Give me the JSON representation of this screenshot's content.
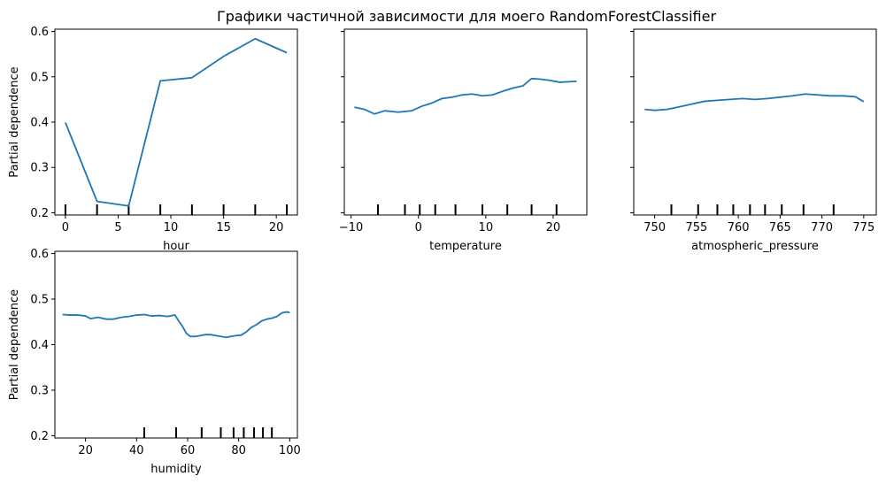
{
  "figure": {
    "title": "Графики частичной зависимости для моего RandomForestClassifier",
    "line_color": "#1f77b4",
    "axis_color": "#000000",
    "background": "#ffffff"
  },
  "chart_data": [
    {
      "type": "line",
      "xlabel": "hour",
      "ylabel": "Partial dependence",
      "show_ytick_labels": true,
      "grid": false,
      "xlim": [
        -1,
        22
      ],
      "ylim": [
        0.195,
        0.605
      ],
      "xticks": [
        0,
        5,
        10,
        15,
        20
      ],
      "xtick_labels": [
        "0",
        "5",
        "10",
        "15",
        "20"
      ],
      "yticks": [
        0.2,
        0.3,
        0.4,
        0.5,
        0.6
      ],
      "ytick_labels": [
        "0.2",
        "0.3",
        "0.4",
        "0.5",
        "0.6"
      ],
      "x": [
        0,
        3,
        6,
        9,
        12,
        15,
        18,
        21
      ],
      "y": [
        0.399,
        0.225,
        0.215,
        0.491,
        0.498,
        0.545,
        0.584,
        0.553
      ],
      "rug": [
        0,
        3,
        6,
        9,
        12,
        15,
        18,
        21
      ]
    },
    {
      "type": "line",
      "xlabel": "temperature",
      "ylabel": "",
      "show_ytick_labels": false,
      "grid": false,
      "xlim": [
        -11,
        25
      ],
      "ylim": [
        0.195,
        0.605
      ],
      "xticks": [
        -10,
        0,
        10,
        20
      ],
      "xtick_labels": [
        "−10",
        "0",
        "10",
        "20"
      ],
      "yticks": [
        0.2,
        0.3,
        0.4,
        0.5,
        0.6
      ],
      "ytick_labels": [
        "",
        "",
        "",
        "",
        ""
      ],
      "x": [
        -9.5,
        -8,
        -6.5,
        -5,
        -3,
        -1,
        0.5,
        2,
        3.5,
        5,
        6.5,
        8,
        9.5,
        11,
        12.5,
        14,
        15.5,
        16.8,
        18,
        19.5,
        21,
        23.5
      ],
      "y": [
        0.433,
        0.428,
        0.418,
        0.425,
        0.422,
        0.425,
        0.435,
        0.442,
        0.452,
        0.455,
        0.46,
        0.462,
        0.458,
        0.46,
        0.468,
        0.475,
        0.48,
        0.496,
        0.495,
        0.492,
        0.488,
        0.49
      ],
      "rug": [
        -6,
        -2,
        0.2,
        2.5,
        5.5,
        9.5,
        13.2,
        16.8,
        20.5
      ]
    },
    {
      "type": "line",
      "xlabel": "atmospheric_pressure",
      "ylabel": "",
      "show_ytick_labels": false,
      "grid": false,
      "xlim": [
        747.5,
        776.5
      ],
      "ylim": [
        0.195,
        0.605
      ],
      "xticks": [
        750,
        755,
        760,
        765,
        770,
        775
      ],
      "xtick_labels": [
        "750",
        "755",
        "760",
        "765",
        "770",
        "775"
      ],
      "yticks": [
        0.2,
        0.3,
        0.4,
        0.5,
        0.6
      ],
      "ytick_labels": [
        "",
        "",
        "",
        "",
        ""
      ],
      "x": [
        748.8,
        750,
        751.5,
        753,
        754.5,
        756,
        757.5,
        759,
        760.5,
        762,
        763.5,
        765,
        766.5,
        768,
        769.5,
        771,
        772.5,
        774,
        775
      ],
      "y": [
        0.428,
        0.426,
        0.428,
        0.434,
        0.44,
        0.446,
        0.448,
        0.45,
        0.452,
        0.45,
        0.452,
        0.455,
        0.458,
        0.462,
        0.46,
        0.458,
        0.458,
        0.456,
        0.445
      ],
      "rug": [
        752,
        755.2,
        757.5,
        759.4,
        761.4,
        763.2,
        765.2,
        767.8,
        771.4
      ]
    },
    {
      "type": "line",
      "xlabel": "humidity",
      "ylabel": "Partial dependence",
      "show_ytick_labels": true,
      "grid": false,
      "xlim": [
        8,
        103
      ],
      "ylim": [
        0.195,
        0.605
      ],
      "xticks": [
        20,
        40,
        60,
        80,
        100
      ],
      "xtick_labels": [
        "20",
        "40",
        "60",
        "80",
        "100"
      ],
      "yticks": [
        0.2,
        0.3,
        0.4,
        0.5,
        0.6
      ],
      "ytick_labels": [
        "0.2",
        "0.3",
        "0.4",
        "0.5",
        "0.6"
      ],
      "x": [
        11,
        14,
        17,
        20,
        22,
        25,
        28,
        31,
        34,
        37,
        40,
        43,
        46,
        49,
        52,
        55,
        56.5,
        58,
        59.5,
        61,
        63,
        65,
        67,
        69,
        71,
        73,
        75,
        77,
        79,
        81,
        83,
        85,
        87,
        89,
        91,
        93,
        95,
        97,
        99,
        100
      ],
      "y": [
        0.466,
        0.465,
        0.465,
        0.463,
        0.457,
        0.46,
        0.456,
        0.456,
        0.46,
        0.462,
        0.465,
        0.466,
        0.463,
        0.464,
        0.462,
        0.465,
        0.452,
        0.44,
        0.425,
        0.418,
        0.418,
        0.42,
        0.422,
        0.422,
        0.42,
        0.418,
        0.416,
        0.418,
        0.42,
        0.421,
        0.428,
        0.438,
        0.444,
        0.452,
        0.456,
        0.458,
        0.462,
        0.47,
        0.472,
        0.47
      ],
      "rug": [
        43,
        55.5,
        65.5,
        73,
        78,
        82,
        86,
        89.5,
        93
      ]
    }
  ]
}
